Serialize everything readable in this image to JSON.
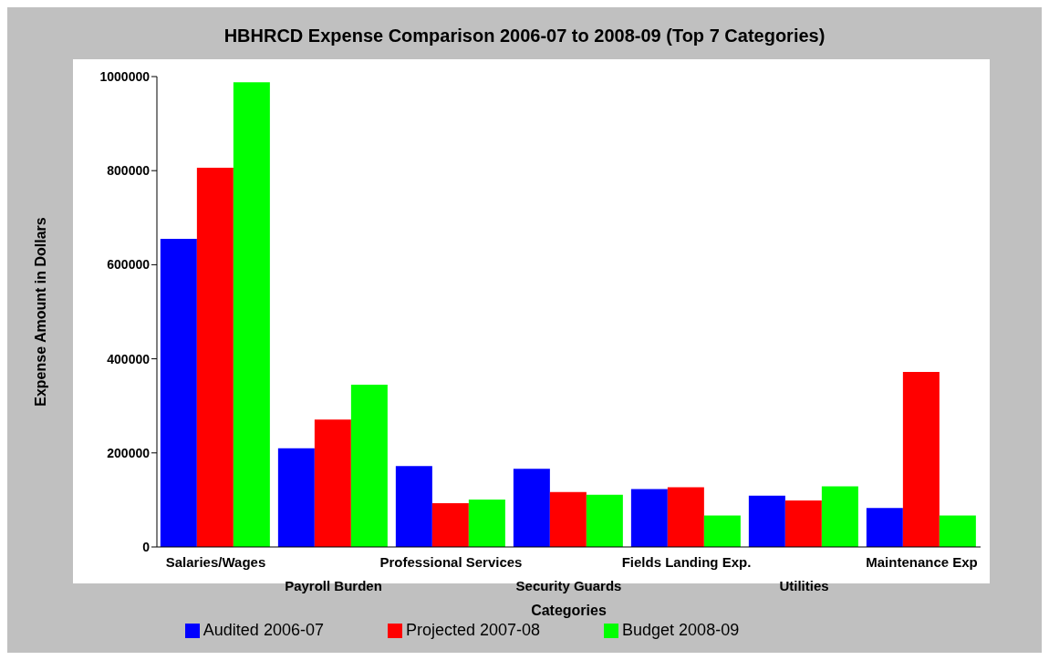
{
  "chart_data": {
    "type": "bar",
    "title": "HBHRCD Expense Comparison 2006-07 to 2008-09 (Top 7 Categories)",
    "xlabel": "Categories",
    "ylabel": "Expense Amount in Dollars",
    "categories": [
      "Salaries/Wages",
      "Payroll Burden",
      "Professional Services",
      "Security Guards",
      "Fields Landing Exp.",
      "Utilities",
      "Maintenance Exp"
    ],
    "series": [
      {
        "name": "Audited 2006-07",
        "color": "#0000ff",
        "values": [
          655000,
          210000,
          172000,
          166000,
          123000,
          109000,
          83000
        ]
      },
      {
        "name": "Projected 2007-08",
        "color": "#ff0000",
        "values": [
          806000,
          271000,
          93000,
          117000,
          127000,
          99000,
          372000
        ]
      },
      {
        "name": "Budget 2008-09",
        "color": "#00ff00",
        "values": [
          988000,
          345000,
          101000,
          111000,
          67000,
          129000,
          67000
        ]
      }
    ],
    "ylim": [
      0,
      1000000
    ],
    "yticks": [
      0,
      200000,
      400000,
      600000,
      800000,
      1000000
    ],
    "grid": false,
    "legend": "bottom"
  }
}
